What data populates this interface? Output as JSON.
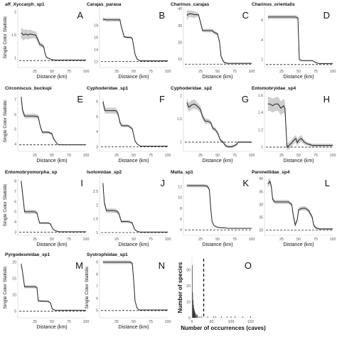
{
  "figure": {
    "y_axis_label": "Single Color Statistic",
    "x_axis_label": "Distance (km)"
  },
  "chart_data": [
    {
      "type": "line",
      "letter": "A",
      "title": "aff_Xyccarph_sp1",
      "xlabel": "Distance (km)",
      "ylabel": "Single Color Statistic",
      "xlim": [
        0,
        100
      ],
      "ylim": [
        0.8,
        2.1
      ],
      "xticks": [
        25,
        50,
        75,
        100
      ],
      "yticks": [
        1.0,
        1.5,
        2.0
      ],
      "baseline": 0.95,
      "x": [
        5,
        8,
        12,
        15,
        18,
        22,
        26,
        28,
        30,
        32,
        35,
        38,
        40,
        42,
        45,
        50,
        55,
        60,
        65,
        70,
        75,
        80,
        90,
        100
      ],
      "y": [
        1.55,
        1.5,
        1.52,
        1.5,
        1.52,
        1.51,
        1.5,
        1.45,
        1.38,
        1.3,
        1.28,
        1.25,
        1.1,
        1.02,
        1.0,
        0.97,
        0.96,
        0.96,
        0.96,
        0.96,
        0.96,
        0.96,
        0.96,
        0.96
      ],
      "ci": [
        0.12,
        0.12,
        0.1,
        0.1,
        0.1,
        0.08,
        0.08,
        0.08,
        0.06,
        0.05,
        0.05,
        0.04,
        0.03,
        0.02,
        0.01,
        0.01,
        0.01,
        0.01,
        0.01,
        0.01,
        0.01,
        0.01,
        0.01,
        0.01
      ]
    },
    {
      "type": "line",
      "letter": "B",
      "title": "Carajas_paraua",
      "xlabel": "Distance (km)",
      "ylabel": "",
      "xlim": [
        0,
        100
      ],
      "ylim": [
        11,
        21
      ],
      "xticks": [
        25,
        50,
        75,
        100
      ],
      "yticks": [
        12,
        14,
        16,
        18
      ],
      "baseline": 12.0,
      "x": [
        5,
        10,
        20,
        30,
        31,
        36,
        40,
        45,
        48,
        50,
        52,
        55,
        58,
        60,
        62,
        65,
        70,
        75,
        80,
        85,
        90,
        95,
        100
      ],
      "y": [
        19.0,
        18.9,
        18.9,
        18.9,
        18.2,
        16.1,
        16.0,
        16.0,
        15.8,
        14.5,
        13.2,
        12.4,
        12.2,
        12.1,
        12.1,
        12.1,
        12.1,
        12.1,
        12.1,
        12.1,
        12.1,
        12.1,
        12.1
      ],
      "ci": [
        0.3,
        0.3,
        0.3,
        0.3,
        0.3,
        0.2,
        0.2,
        0.2,
        0.2,
        0.2,
        0.2,
        0.1,
        0.1,
        0.1,
        0.1,
        0.1,
        0.1,
        0.1,
        0.1,
        0.1,
        0.1,
        0.1,
        0.1
      ]
    },
    {
      "type": "line",
      "letter": "C",
      "title": "Charinus_carajas",
      "xlabel": "Distance (km)",
      "ylabel": "",
      "xlim": [
        0,
        100
      ],
      "ylim": [
        5,
        41
      ],
      "xticks": [
        25,
        50,
        75,
        100
      ],
      "yticks": [
        10,
        20,
        30,
        40
      ],
      "baseline": 7.0,
      "x": [
        5,
        8,
        12,
        16,
        22,
        25,
        28,
        32,
        38,
        42,
        45,
        50,
        53,
        55,
        58,
        60,
        65,
        70,
        80,
        90,
        100
      ],
      "y": [
        36,
        37,
        37,
        36.5,
        36.5,
        32,
        27,
        27,
        27,
        27,
        26,
        25,
        20,
        12,
        9,
        8,
        7.5,
        7.5,
        7.5,
        7.5,
        7.5
      ],
      "ci": [
        3,
        2,
        2,
        2,
        1,
        1,
        1,
        1,
        1,
        1,
        1,
        1,
        1,
        1,
        0.5,
        0.5,
        0.3,
        0.3,
        0.3,
        0.3,
        0.3
      ]
    },
    {
      "type": "line",
      "letter": "D",
      "title": "Charinus_orientalis",
      "xlabel": "Distance (km)",
      "ylabel": "",
      "xlim": [
        0,
        100
      ],
      "ylim": [
        1.2,
        7.3
      ],
      "xticks": [
        25,
        50,
        75,
        100
      ],
      "yticks": [
        2,
        4,
        6
      ],
      "baseline": 1.5,
      "x": [
        5,
        10,
        20,
        30,
        40,
        45,
        49,
        51,
        55,
        60,
        65,
        70,
        75,
        80,
        85,
        90,
        95,
        100
      ],
      "y": [
        6.3,
        6.3,
        6.3,
        6.3,
        6.3,
        6.3,
        6.2,
        2.0,
        1.9,
        1.9,
        1.9,
        1.9,
        1.7,
        1.6,
        1.6,
        1.6,
        1.6,
        1.6
      ],
      "ci": [
        0.2,
        0.2,
        0.2,
        0.2,
        0.2,
        0.2,
        0.2,
        0.05,
        0.05,
        0.05,
        0.05,
        0.05,
        0.05,
        0.05,
        0.05,
        0.05,
        0.05,
        0.05
      ]
    },
    {
      "type": "line",
      "letter": "E",
      "title": "Circoniscus_buckupi",
      "xlabel": "Distance (km)",
      "ylabel": "Single Color Statistic",
      "xlim": [
        0,
        100
      ],
      "ylim": [
        3.5,
        7.6
      ],
      "xticks": [
        25,
        50,
        75,
        100
      ],
      "yticks": [
        4,
        5,
        6,
        7
      ],
      "baseline": 3.95,
      "x": [
        5,
        7,
        10,
        15,
        20,
        25,
        30,
        33,
        36,
        40,
        45,
        50,
        52,
        55,
        58,
        60,
        65,
        70,
        80,
        90,
        100
      ],
      "y": [
        7.2,
        6.3,
        5.9,
        5.9,
        5.9,
        5.9,
        5.85,
        5.2,
        4.8,
        4.8,
        4.8,
        4.7,
        4.4,
        4.2,
        4.0,
        3.95,
        3.95,
        3.95,
        3.95,
        3.95,
        3.95
      ],
      "ci": [
        0.3,
        0.2,
        0.15,
        0.15,
        0.15,
        0.15,
        0.15,
        0.1,
        0.1,
        0.1,
        0.1,
        0.1,
        0.08,
        0.05,
        0.03,
        0.02,
        0.02,
        0.02,
        0.02,
        0.02,
        0.02
      ]
    },
    {
      "type": "line",
      "letter": "F",
      "title": "Cyphoderidae_sp1",
      "xlabel": "Distance (km)",
      "ylabel": "",
      "xlim": [
        0,
        100
      ],
      "ylim": [
        2.7,
        6.7
      ],
      "xticks": [
        25,
        50,
        75,
        100
      ],
      "yticks": [
        3,
        4,
        5,
        6
      ],
      "baseline": 3.0,
      "x": [
        5,
        8,
        12,
        18,
        24,
        27,
        30,
        33,
        38,
        42,
        45,
        48,
        50,
        52,
        55,
        58,
        60,
        65,
        70,
        80,
        90,
        100
      ],
      "y": [
        6.0,
        5.4,
        5.4,
        5.4,
        5.4,
        5.2,
        4.6,
        4.4,
        4.4,
        4.4,
        4.3,
        4.2,
        3.8,
        3.4,
        3.2,
        3.1,
        3.05,
        3.05,
        3.05,
        3.05,
        3.05,
        3.05
      ],
      "ci": [
        0.3,
        0.2,
        0.2,
        0.2,
        0.2,
        0.15,
        0.15,
        0.1,
        0.1,
        0.1,
        0.1,
        0.1,
        0.08,
        0.05,
        0.03,
        0.02,
        0.02,
        0.02,
        0.02,
        0.02,
        0.02,
        0.02
      ]
    },
    {
      "type": "line",
      "letter": "G",
      "title": "Cyphoderidae_sp2",
      "xlabel": "Distance (km)",
      "ylabel": "",
      "xlim": [
        0,
        100
      ],
      "ylim": [
        0.8,
        2.1
      ],
      "xticks": [
        25,
        50,
        75,
        100
      ],
      "yticks": [
        1.0,
        1.5,
        2.0
      ],
      "baseline": 1.0,
      "x": [
        5,
        8,
        12,
        16,
        20,
        25,
        28,
        32,
        36,
        40,
        43,
        46,
        50,
        54,
        58,
        62,
        66,
        70,
        74,
        78,
        80,
        85,
        90,
        95,
        100
      ],
      "y": [
        1.85,
        1.75,
        1.8,
        1.82,
        1.78,
        1.7,
        1.55,
        1.45,
        1.45,
        1.42,
        1.3,
        1.28,
        1.2,
        1.05,
        1.0,
        0.92,
        0.9,
        0.9,
        0.92,
        0.95,
        1.0,
        1.0,
        1.0,
        1.0,
        1.0
      ],
      "ci": [
        0.1,
        0.1,
        0.1,
        0.1,
        0.08,
        0.08,
        0.06,
        0.06,
        0.05,
        0.05,
        0.05,
        0.04,
        0.04,
        0.03,
        0.03,
        0.03,
        0.03,
        0.03,
        0.03,
        0.03,
        0.02,
        0.02,
        0.02,
        0.02,
        0.02
      ]
    },
    {
      "type": "line",
      "letter": "H",
      "title": "Entomobryidae_sp4",
      "xlabel": "Distance (km)",
      "ylabel": "",
      "xlim": [
        0,
        100
      ],
      "ylim": [
        0.95,
        1.65
      ],
      "xticks": [
        25,
        50,
        75,
        100
      ],
      "yticks": [
        1.0,
        1.2,
        1.4,
        1.6
      ],
      "baseline": 1.0,
      "x": [
        5,
        8,
        12,
        16,
        20,
        24,
        28,
        30,
        33,
        36,
        40,
        43,
        46,
        48,
        50,
        54,
        58,
        62,
        66,
        70,
        75,
        80,
        90,
        100
      ],
      "y": [
        1.5,
        1.5,
        1.48,
        1.5,
        1.5,
        1.45,
        1.48,
        1.45,
        1.0,
        1.02,
        1.05,
        1.08,
        1.1,
        1.05,
        1.08,
        1.1,
        1.06,
        1.04,
        1.03,
        1.02,
        1.02,
        1.02,
        1.02,
        1.02
      ],
      "ci": [
        0.08,
        0.08,
        0.08,
        0.08,
        0.08,
        0.08,
        0.08,
        0.08,
        0.04,
        0.04,
        0.04,
        0.04,
        0.04,
        0.04,
        0.04,
        0.04,
        0.03,
        0.02,
        0.02,
        0.02,
        0.02,
        0.02,
        0.02,
        0.02
      ]
    },
    {
      "type": "line",
      "letter": "I",
      "title": "Entomobryomorpha_sp",
      "xlabel": "Distance (km)",
      "ylabel": "Single Color Statistic",
      "xlim": [
        0,
        100
      ],
      "ylim": [
        2.7,
        8.6
      ],
      "xticks": [
        25,
        50,
        75,
        100
      ],
      "yticks": [
        3,
        4,
        5,
        6,
        7,
        8
      ],
      "baseline": 3.0,
      "x": [
        5,
        7,
        10,
        15,
        20,
        25,
        28,
        32,
        38,
        42,
        45,
        48,
        50,
        52,
        55,
        58,
        60,
        65,
        70,
        80,
        90,
        100
      ],
      "y": [
        8.0,
        6.8,
        5.0,
        5.0,
        5.0,
        5.0,
        4.9,
        3.9,
        3.9,
        3.9,
        3.9,
        3.8,
        3.5,
        3.3,
        3.15,
        3.1,
        3.05,
        3.05,
        3.05,
        3.05,
        3.05,
        3.05
      ],
      "ci": [
        0.4,
        0.3,
        0.2,
        0.2,
        0.2,
        0.2,
        0.15,
        0.1,
        0.1,
        0.1,
        0.1,
        0.1,
        0.08,
        0.05,
        0.03,
        0.02,
        0.02,
        0.02,
        0.02,
        0.02,
        0.02,
        0.02
      ]
    },
    {
      "type": "line",
      "letter": "J",
      "title": "Isotomidae_sp2",
      "xlabel": "Distance (km)",
      "ylabel": "",
      "xlim": [
        0,
        100
      ],
      "ylim": [
        0.9,
        3.1
      ],
      "xticks": [
        25,
        50,
        75,
        100
      ],
      "yticks": [
        1.0,
        1.5,
        2.0,
        2.5
      ],
      "baseline": 1.0,
      "x": [
        5,
        7,
        10,
        15,
        20,
        25,
        28,
        32,
        38,
        42,
        45,
        48,
        50,
        52,
        55,
        58,
        60,
        65,
        70,
        80,
        90,
        100
      ],
      "y": [
        2.8,
        2.1,
        1.8,
        1.8,
        1.8,
        1.78,
        1.72,
        1.4,
        1.4,
        1.4,
        1.38,
        1.35,
        1.2,
        1.1,
        1.05,
        1.03,
        1.02,
        1.02,
        1.02,
        1.02,
        1.02,
        1.02
      ],
      "ci": [
        0.15,
        0.1,
        0.08,
        0.08,
        0.08,
        0.08,
        0.06,
        0.05,
        0.05,
        0.05,
        0.05,
        0.04,
        0.03,
        0.02,
        0.02,
        0.01,
        0.01,
        0.01,
        0.01,
        0.01,
        0.01,
        0.01
      ]
    },
    {
      "type": "line",
      "letter": "K",
      "title": "Matta_sp1",
      "xlabel": "Distance (km)",
      "ylabel": "",
      "xlim": [
        0,
        100
      ],
      "ylim": [
        3,
        14.2
      ],
      "xticks": [
        25,
        50,
        75,
        100
      ],
      "yticks": [
        4,
        6,
        8,
        10,
        12
      ],
      "baseline": 4.0,
      "x": [
        5,
        10,
        15,
        20,
        25,
        30,
        35,
        38,
        40,
        42,
        45,
        48,
        50,
        55,
        60,
        65,
        70,
        75,
        80,
        90,
        100
      ],
      "y": [
        12.2,
        12.2,
        12.2,
        12.2,
        12.2,
        12.2,
        12.1,
        11.5,
        8.0,
        5.5,
        4.8,
        4.6,
        4.5,
        4.4,
        4.4,
        4.3,
        4.3,
        4.3,
        4.3,
        4.3,
        4.3
      ],
      "ci": [
        0.3,
        0.3,
        0.3,
        0.3,
        0.3,
        0.3,
        0.3,
        0.3,
        0.2,
        0.15,
        0.1,
        0.1,
        0.1,
        0.1,
        0.1,
        0.05,
        0.05,
        0.05,
        0.05,
        0.05,
        0.05
      ]
    },
    {
      "type": "line",
      "letter": "L",
      "title": "Paronellidae_sp4",
      "xlabel": "Distance (km)",
      "ylabel": "",
      "xlim": [
        0,
        100
      ],
      "ylim": [
        18,
        41.5
      ],
      "xticks": [
        25,
        50,
        75,
        100
      ],
      "yticks": [
        20,
        25,
        30,
        35,
        40
      ],
      "baseline": 20.0,
      "x": [
        5,
        8,
        10,
        12,
        15,
        20,
        25,
        30,
        35,
        40,
        42,
        45,
        48,
        50,
        55,
        60,
        65,
        70,
        72,
        75,
        80,
        90,
        100
      ],
      "y": [
        38,
        39,
        37,
        32,
        31,
        31,
        31,
        31,
        31,
        30,
        26,
        22,
        24,
        28,
        28.5,
        28.5,
        27.5,
        25,
        22,
        21,
        20.5,
        20.5,
        20.5
      ],
      "ci": [
        1.5,
        1.2,
        1.0,
        0.8,
        0.8,
        0.8,
        0.8,
        0.8,
        0.8,
        0.8,
        0.8,
        0.8,
        0.8,
        0.8,
        0.8,
        0.8,
        0.8,
        0.8,
        0.6,
        0.5,
        0.3,
        0.3,
        0.3
      ]
    },
    {
      "type": "line",
      "letter": "M",
      "title": "Pyrgodesmidae_sp1",
      "xlabel": "Distance (km)",
      "ylabel": "Single Color Statistic",
      "xlim": [
        0,
        100
      ],
      "ylim": [
        3,
        21.5
      ],
      "xticks": [
        25,
        50,
        75,
        100
      ],
      "yticks": [
        5,
        10,
        15,
        20
      ],
      "baseline": 5.0,
      "x": [
        5,
        7,
        10,
        15,
        20,
        25,
        28,
        30,
        35,
        40,
        45,
        48,
        50,
        52,
        55,
        60,
        65,
        70,
        80,
        90,
        100
      ],
      "y": [
        19.5,
        17,
        12.5,
        12.5,
        12.5,
        12.5,
        12.3,
        8.2,
        8.1,
        8.1,
        8.0,
        7.5,
        6.0,
        5.5,
        5.3,
        5.3,
        5.3,
        5.3,
        5.3,
        5.3,
        5.3
      ],
      "ci": [
        0.8,
        0.6,
        0.5,
        0.5,
        0.5,
        0.5,
        0.4,
        0.3,
        0.3,
        0.3,
        0.3,
        0.3,
        0.2,
        0.1,
        0.1,
        0.1,
        0.1,
        0.1,
        0.1,
        0.1,
        0.1
      ]
    },
    {
      "type": "line",
      "letter": "N",
      "title": "Systrophiidae_sp1",
      "xlabel": "Distance (km)",
      "ylabel": "Single Color Statistic",
      "xlim": [
        0,
        100
      ],
      "ylim": [
        4.4,
        9.4
      ],
      "xticks": [
        25,
        50,
        75,
        100
      ],
      "yticks": [
        5,
        6,
        7,
        8,
        9
      ],
      "baseline": 5.0,
      "x": [
        5,
        10,
        20,
        30,
        40,
        45,
        48,
        50,
        52,
        55,
        58,
        60,
        65,
        70,
        80,
        90,
        100
      ],
      "y": [
        9.0,
        9.0,
        9.0,
        9.0,
        9.0,
        9.0,
        8.9,
        7.5,
        5.8,
        5.2,
        5.05,
        5.05,
        5.05,
        5.05,
        5.05,
        5.05,
        5.05
      ],
      "ci": [
        0.15,
        0.15,
        0.15,
        0.15,
        0.15,
        0.15,
        0.15,
        0.1,
        0.05,
        0.05,
        0.03,
        0.03,
        0.03,
        0.03,
        0.03,
        0.03,
        0.03
      ]
    },
    {
      "type": "bar",
      "letter": "O",
      "title": "",
      "xlabel": "Number of occurrences (caves)",
      "ylabel": "Number of species",
      "xlim": [
        0,
        160
      ],
      "ylim": [
        0,
        38
      ],
      "xticks": [
        0,
        50,
        100,
        150
      ],
      "yticks": [
        0,
        10,
        20,
        30
      ],
      "vline": 30,
      "categories": [
        1,
        2,
        3,
        4,
        5,
        6,
        7,
        8,
        9,
        10,
        12,
        14,
        16,
        20,
        25,
        40,
        55,
        60,
        75,
        90,
        100,
        110,
        130,
        150
      ],
      "values": [
        33,
        16,
        11,
        8,
        6,
        5,
        4,
        3,
        3,
        2,
        2,
        2,
        1,
        1,
        1,
        1,
        1,
        1,
        1,
        1,
        1,
        1,
        1,
        1
      ]
    }
  ]
}
